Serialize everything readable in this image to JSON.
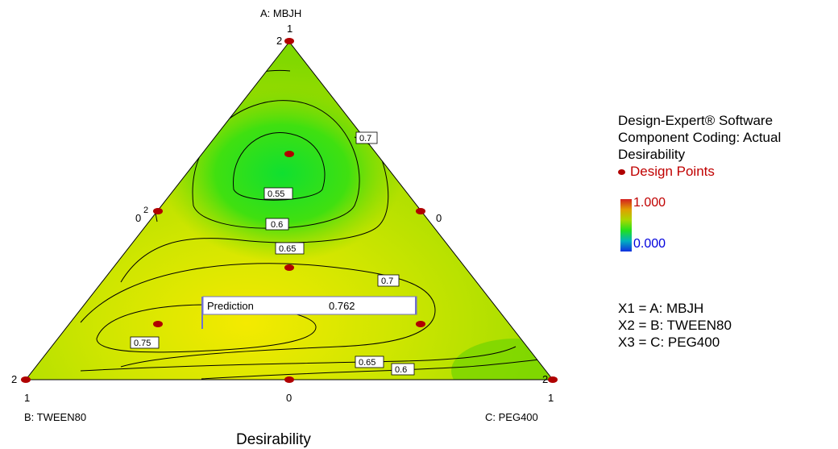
{
  "chart_data": {
    "type": "contour",
    "title": "Desirability",
    "vertices": {
      "top": {
        "name": "A: MBJH",
        "vertex_value": "1",
        "count": "2"
      },
      "bottom_left": {
        "name": "B: TWEEN80",
        "vertex_value": "1",
        "count": "2"
      },
      "bottom_right": {
        "name": "C: PEG400",
        "vertex_value": "1",
        "count": "2"
      }
    },
    "edge_labels": {
      "left_mid": "0",
      "left_mid_count": "2",
      "right_mid": "0",
      "bottom_mid": "0"
    },
    "contour_labels": [
      "0.55",
      "0.6",
      "0.65",
      "0.7",
      "0.7",
      "0.75",
      "0.65",
      "0.6"
    ],
    "prediction": {
      "label": "Prediction",
      "value": "0.762"
    },
    "design_points": [
      {
        "A": 1,
        "B": 0,
        "C": 0
      },
      {
        "A": 0.5,
        "B": 0.5,
        "C": 0
      },
      {
        "A": 0.5,
        "B": 0,
        "C": 0.5
      },
      {
        "A": 0.667,
        "B": 0.167,
        "C": 0.167
      },
      {
        "A": 0.333,
        "B": 0.333,
        "C": 0.333
      },
      {
        "A": 0.167,
        "B": 0.667,
        "C": 0.167
      },
      {
        "A": 0.167,
        "B": 0.167,
        "C": 0.667
      },
      {
        "A": 0,
        "B": 1,
        "C": 0
      },
      {
        "A": 0,
        "B": 0.5,
        "C": 0.5
      },
      {
        "A": 0,
        "B": 0,
        "C": 1
      }
    ],
    "color_scale": {
      "max": "1.000",
      "min": "0.000",
      "max_color": "#d42020",
      "min_color": "#1030e0"
    }
  },
  "legend": {
    "software": "Design-Expert® Software",
    "coding": "Component Coding: Actual",
    "response": "Desirability",
    "design_points_label": "Design Points",
    "x1": "X1 = A: MBJH",
    "x2": "X2 = B: TWEEN80",
    "x3": "X3 = C: PEG400"
  }
}
